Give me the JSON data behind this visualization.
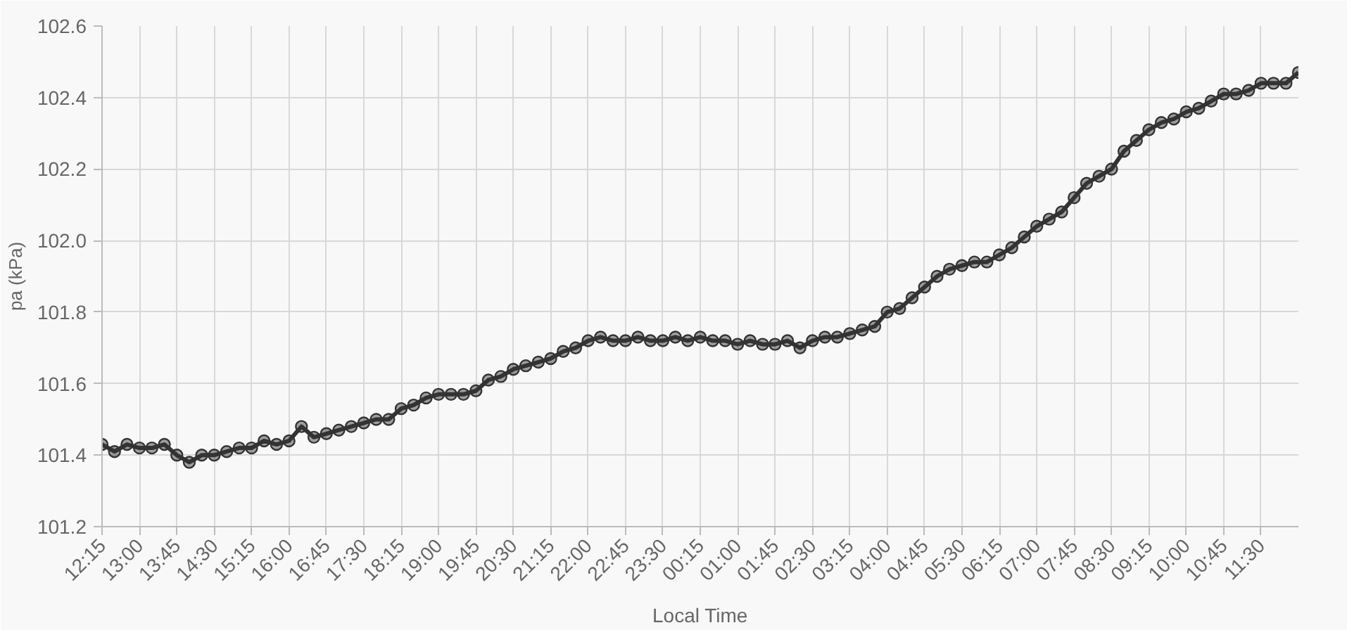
{
  "chart_data": {
    "type": "line",
    "xlabel": "Local Time",
    "ylabel": "pa (kPa)",
    "x": [
      "2000-01-01T12:15",
      "2000-01-01T12:30",
      "2000-01-01T12:45",
      "2000-01-01T13:00",
      "2000-01-01T13:15",
      "2000-01-01T13:30",
      "2000-01-01T13:45",
      "2000-01-01T14:00",
      "2000-01-01T14:15",
      "2000-01-01T14:30",
      "2000-01-01T14:45",
      "2000-01-01T15:00",
      "2000-01-01T15:15",
      "2000-01-01T15:30",
      "2000-01-01T15:45",
      "2000-01-01T16:00",
      "2000-01-01T16:15",
      "2000-01-01T16:30",
      "2000-01-01T16:45",
      "2000-01-01T17:00",
      "2000-01-01T17:15",
      "2000-01-01T17:30",
      "2000-01-01T17:45",
      "2000-01-01T18:00",
      "2000-01-01T18:15",
      "2000-01-01T18:30",
      "2000-01-01T18:45",
      "2000-01-01T19:00",
      "2000-01-01T19:15",
      "2000-01-01T19:30",
      "2000-01-01T19:45",
      "2000-01-01T20:00",
      "2000-01-01T20:15",
      "2000-01-01T20:30",
      "2000-01-01T20:45",
      "2000-01-01T21:00",
      "2000-01-01T21:15",
      "2000-01-01T21:30",
      "2000-01-01T21:45",
      "2000-01-01T22:00",
      "2000-01-01T22:15",
      "2000-01-01T22:30",
      "2000-01-01T22:45",
      "2000-01-01T23:00",
      "2000-01-01T23:15",
      "2000-01-01T23:30",
      "2000-01-01T23:45",
      "2000-01-02T00:00",
      "2000-01-02T00:15",
      "2000-01-02T00:30",
      "2000-01-02T00:45",
      "2000-01-02T01:00",
      "2000-01-02T01:15",
      "2000-01-02T01:30",
      "2000-01-02T01:45",
      "2000-01-02T02:00",
      "2000-01-02T02:15",
      "2000-01-02T02:30",
      "2000-01-02T02:45",
      "2000-01-02T03:00",
      "2000-01-02T03:15",
      "2000-01-02T03:30",
      "2000-01-02T03:45",
      "2000-01-02T04:00",
      "2000-01-02T04:15",
      "2000-01-02T04:30",
      "2000-01-02T04:45",
      "2000-01-02T05:00",
      "2000-01-02T05:15",
      "2000-01-02T05:30",
      "2000-01-02T05:45",
      "2000-01-02T06:00",
      "2000-01-02T06:15",
      "2000-01-02T06:30",
      "2000-01-02T06:45",
      "2000-01-02T07:00",
      "2000-01-02T07:15",
      "2000-01-02T07:30",
      "2000-01-02T07:45",
      "2000-01-02T08:00",
      "2000-01-02T08:15",
      "2000-01-02T08:30",
      "2000-01-02T08:45",
      "2000-01-02T09:00",
      "2000-01-02T09:15",
      "2000-01-02T09:30",
      "2000-01-02T09:45",
      "2000-01-02T10:00",
      "2000-01-02T10:15",
      "2000-01-02T10:30",
      "2000-01-02T10:45",
      "2000-01-02T11:00",
      "2000-01-02T11:15",
      "2000-01-02T11:30",
      "2000-01-02T11:45",
      "2000-01-02T12:00",
      "2000-01-02T12:15"
    ],
    "series": [
      {
        "color": "#333333",
        "values": [
          101.43,
          101.41,
          101.43,
          101.42,
          101.42,
          101.43,
          101.4,
          101.38,
          101.4,
          101.4,
          101.41,
          101.42,
          101.42,
          101.44,
          101.43,
          101.44,
          101.48,
          101.45,
          101.46,
          101.47,
          101.48,
          101.49,
          101.5,
          101.5,
          101.53,
          101.54,
          101.56,
          101.57,
          101.57,
          101.57,
          101.58,
          101.61,
          101.62,
          101.64,
          101.65,
          101.66,
          101.67,
          101.69,
          101.7,
          101.72,
          101.73,
          101.72,
          101.72,
          101.73,
          101.72,
          101.72,
          101.73,
          101.72,
          101.73,
          101.72,
          101.72,
          101.71,
          101.72,
          101.71,
          101.71,
          101.72,
          101.7,
          101.72,
          101.73,
          101.73,
          101.74,
          101.75,
          101.76,
          101.8,
          101.81,
          101.84,
          101.87,
          101.9,
          101.92,
          101.93,
          101.94,
          101.94,
          101.96,
          101.98,
          102.01,
          102.04,
          102.06,
          102.08,
          102.12,
          102.16,
          102.18,
          102.2,
          102.25,
          102.28,
          102.31,
          102.33,
          102.34,
          102.36,
          102.37,
          102.39,
          102.41,
          102.41,
          102.42,
          102.44,
          102.44,
          102.44,
          102.47
        ]
      }
    ],
    "xlim": [
      "2000-01-01T12:15",
      "2000-01-02T12:15"
    ],
    "xticks": [
      {
        "value": "2000-01-01T12:15",
        "label": "12:15"
      },
      {
        "value": "2000-01-01T13:00",
        "label": "13:00"
      },
      {
        "value": "2000-01-01T13:45",
        "label": "13:45"
      },
      {
        "value": "2000-01-01T14:30",
        "label": "14:30"
      },
      {
        "value": "2000-01-01T15:15",
        "label": "15:15"
      },
      {
        "value": "2000-01-01T16:00",
        "label": "16:00"
      },
      {
        "value": "2000-01-01T16:45",
        "label": "16:45"
      },
      {
        "value": "2000-01-01T17:30",
        "label": "17:30"
      },
      {
        "value": "2000-01-01T18:15",
        "label": "18:15"
      },
      {
        "value": "2000-01-01T19:00",
        "label": "19:00"
      },
      {
        "value": "2000-01-01T19:45",
        "label": "19:45"
      },
      {
        "value": "2000-01-01T20:30",
        "label": "20:30"
      },
      {
        "value": "2000-01-01T21:15",
        "label": "21:15"
      },
      {
        "value": "2000-01-01T22:00",
        "label": "22:00"
      },
      {
        "value": "2000-01-01T22:45",
        "label": "22:45"
      },
      {
        "value": "2000-01-01T23:30",
        "label": "23:30"
      },
      {
        "value": "2000-01-02T00:15",
        "label": "00:15"
      },
      {
        "value": "2000-01-02T01:00",
        "label": "01:00"
      },
      {
        "value": "2000-01-02T01:45",
        "label": "01:45"
      },
      {
        "value": "2000-01-02T02:30",
        "label": "02:30"
      },
      {
        "value": "2000-01-02T03:15",
        "label": "03:15"
      },
      {
        "value": "2000-01-02T04:00",
        "label": "04:00"
      },
      {
        "value": "2000-01-02T04:45",
        "label": "04:45"
      },
      {
        "value": "2000-01-02T05:30",
        "label": "05:30"
      },
      {
        "value": "2000-01-02T06:15",
        "label": "06:15"
      },
      {
        "value": "2000-01-02T07:00",
        "label": "07:00"
      },
      {
        "value": "2000-01-02T07:45",
        "label": "07:45"
      },
      {
        "value": "2000-01-02T08:30",
        "label": "08:30"
      },
      {
        "value": "2000-01-02T09:15",
        "label": "09:15"
      },
      {
        "value": "2000-01-02T10:00",
        "label": "10:00"
      },
      {
        "value": "2000-01-02T10:45",
        "label": "10:45"
      },
      {
        "value": "2000-01-02T11:30",
        "label": "11:30"
      }
    ],
    "ylim": [
      101.2,
      102.6
    ],
    "yticks": [
      101.2,
      101.4,
      101.6,
      101.8,
      {
        "value": 102.0,
        "label": "102.0"
      },
      102.2,
      102.4,
      102.6
    ],
    "grid": true,
    "marker": "circle",
    "line_style": "solid"
  }
}
